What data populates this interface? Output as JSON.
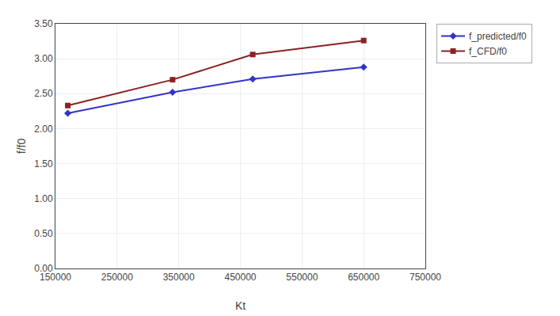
{
  "chart_data": {
    "type": "line",
    "x": [
      170000,
      340000,
      470000,
      650000
    ],
    "series": [
      {
        "name": "f_predicted/f0",
        "color": "#3333CC",
        "marker": "diamond",
        "values": [
          2.22,
          2.52,
          2.71,
          2.88
        ]
      },
      {
        "name": "f_CFD/f0",
        "color": "#8B2222",
        "marker": "square",
        "values": [
          2.33,
          2.7,
          3.06,
          3.26
        ]
      }
    ],
    "xlabel": "Kt",
    "ylabel": "f/f0",
    "xlim": [
      150000,
      750000
    ],
    "ylim": [
      0.0,
      3.5
    ],
    "xticks": [
      150000,
      250000,
      350000,
      450000,
      550000,
      650000,
      750000
    ],
    "yticks": [
      {
        "value": 0.0,
        "label": "0.00"
      },
      {
        "value": 0.5,
        "label": "0.50"
      },
      {
        "value": 1.0,
        "label": "1.00"
      },
      {
        "value": 1.5,
        "label": "1.50"
      },
      {
        "value": 2.0,
        "label": "2.00"
      },
      {
        "value": 2.5,
        "label": "2.50"
      },
      {
        "value": 3.0,
        "label": "3.00"
      },
      {
        "value": 3.5,
        "label": "3.50"
      }
    ],
    "grid": true,
    "legend": "right"
  }
}
